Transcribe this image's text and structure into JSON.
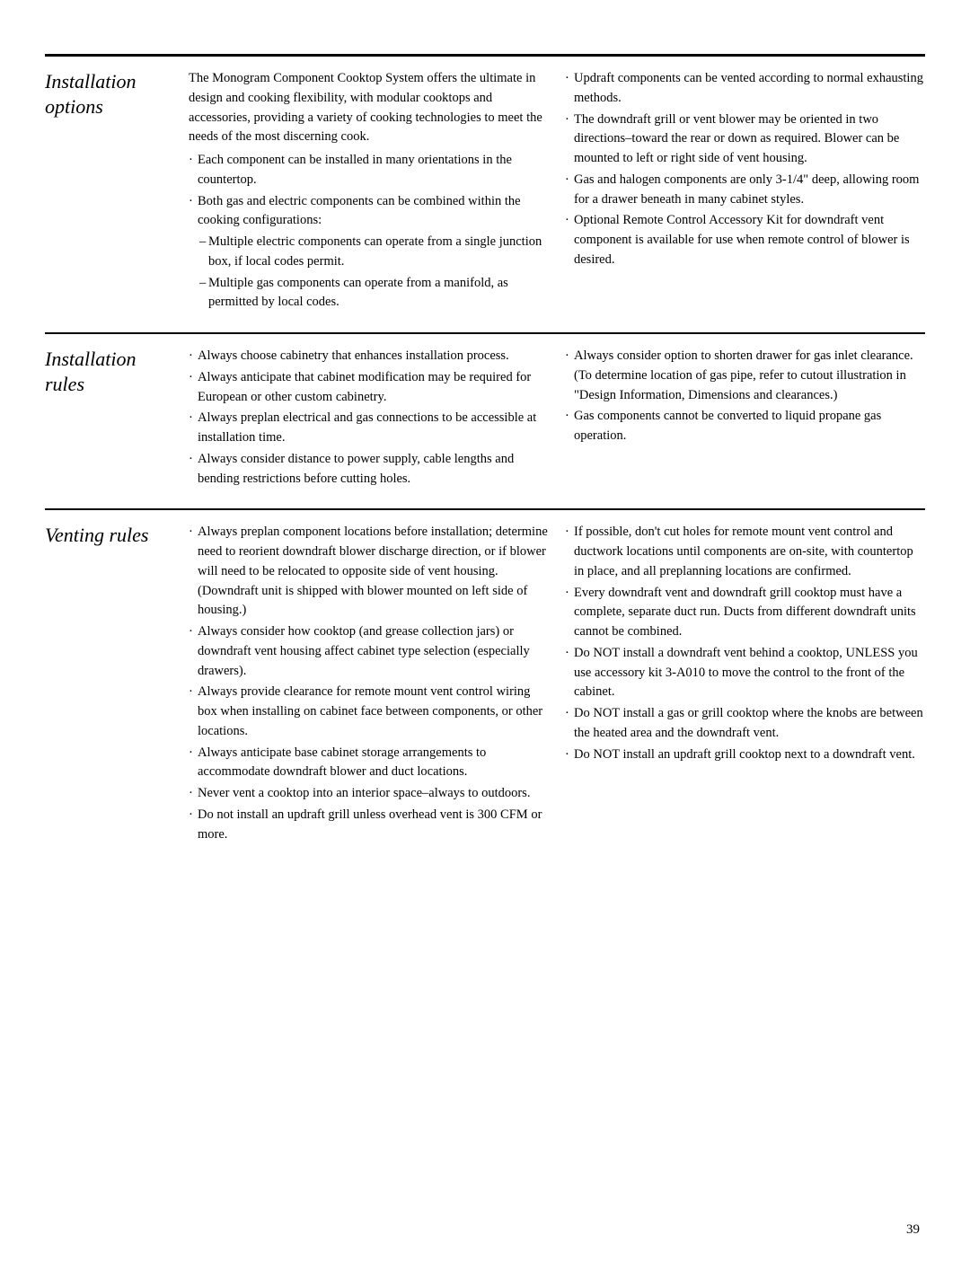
{
  "sections": [
    {
      "title": "Installation options",
      "left": {
        "intro": "The Monogram Component Cooktop System offers the ultimate in design and cooking flexibility, with modular cooktops and accessories, providing a variety of cooking technologies to meet the needs of the most discerning cook.",
        "bullets": [
          {
            "text": "Each component can be installed in many orientations in the countertop."
          },
          {
            "text": "Both gas and electric components can be combined within the cooking configurations:",
            "subs": [
              "Multiple electric components can operate from a single junction box, if local codes permit.",
              "Multiple gas components can operate from a manifold, as permitted by local codes."
            ]
          }
        ]
      },
      "right": {
        "bullets": [
          {
            "text": "Updraft components can be vented according to normal exhausting methods."
          },
          {
            "text": "The downdraft grill or vent blower may be oriented in two directions–toward the rear or down as required. Blower can be mounted to left or right side of vent housing."
          },
          {
            "text": "Gas and halogen components are only 3-1/4\" deep, allowing room for a drawer beneath in many cabinet styles."
          },
          {
            "text": "Optional Remote Control Accessory Kit for downdraft vent component is available for use when remote control of blower is desired."
          }
        ]
      }
    },
    {
      "title": "Installation rules",
      "left": {
        "bullets": [
          {
            "text": "Always choose cabinetry that enhances installation process."
          },
          {
            "text": "Always anticipate that cabinet modification may be required for European or other custom cabinetry."
          },
          {
            "text": "Always preplan electrical and gas connections to be accessible at installation time."
          },
          {
            "text": "Always consider distance to power supply, cable lengths and bending restrictions before cutting holes."
          }
        ]
      },
      "right": {
        "bullets": [
          {
            "text": "Always consider option to shorten drawer for gas inlet clearance. (To determine location of gas pipe, refer to cutout illustration in \"Design Information, Dimensions and clearances.)"
          },
          {
            "text": "Gas components cannot be converted to liquid propane gas operation."
          }
        ]
      }
    },
    {
      "title": "Venting rules",
      "left": {
        "bullets": [
          {
            "text": "Always preplan component locations before installation; determine need to reorient downdraft blower discharge direction, or if blower will need to be relocated to opposite side of vent housing. (Downdraft unit is shipped with blower mounted on left side of housing.)"
          },
          {
            "text": "Always consider how cooktop (and grease collection jars) or downdraft vent housing affect cabinet type selection (especially drawers)."
          },
          {
            "text": "Always provide clearance for remote mount vent control wiring box when installing on cabinet face between components, or other locations."
          },
          {
            "text": "Always anticipate base cabinet storage arrangements to accommodate downdraft blower and duct locations."
          },
          {
            "text": "Never vent a cooktop into an interior space–always to outdoors."
          },
          {
            "text": "Do not install an updraft grill unless overhead vent is 300 CFM or more."
          }
        ]
      },
      "right": {
        "bullets": [
          {
            "text": "If possible, don't cut holes for remote mount vent control and ductwork locations until components are on-site, with countertop in place, and all preplanning locations are confirmed."
          },
          {
            "text": "Every downdraft vent and downdraft grill cooktop must have a complete, separate duct run. Ducts from different downdraft units cannot be combined."
          },
          {
            "text": "Do NOT install a downdraft vent behind a cooktop, UNLESS you use accessory kit 3-A010 to move the control to the front of the cabinet."
          },
          {
            "text": "Do NOT install a gas or grill cooktop where the knobs are between the heated area and the downdraft vent."
          },
          {
            "text": "Do NOT install an updraft grill cooktop next to a downdraft vent."
          }
        ]
      }
    }
  ],
  "pageNumber": "39"
}
